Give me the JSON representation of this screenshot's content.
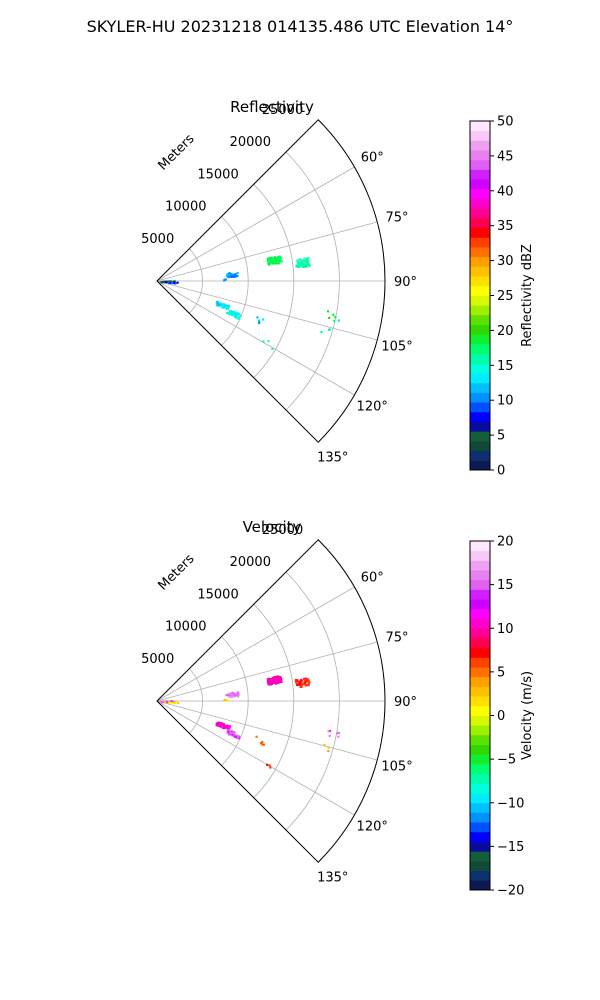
{
  "figure_title": "SKYLER-HU  20231218  014135.486 UTC Elevation 14°",
  "chart_data": [
    {
      "type": "polar-sector-scatter",
      "title": "Reflectivity",
      "radial_label": "Meters",
      "radial_ticks": [
        5000,
        10000,
        15000,
        20000,
        25000
      ],
      "radial_tick_labels": [
        "5000",
        "10000",
        "15000",
        "20000",
        "25000"
      ],
      "azimuth_range_deg": [
        45,
        135
      ],
      "azimuth_ticks_deg": [
        60,
        75,
        90,
        105,
        120,
        135
      ],
      "azimuth_tick_labels": [
        "60°",
        "75°",
        "90°",
        "105°",
        "120°",
        "135°"
      ],
      "range_max_m": 25000,
      "grid": true,
      "colorbar": {
        "label": "Reflectivity dBZ",
        "min": 0,
        "max": 50,
        "ticks": [
          0,
          5,
          10,
          15,
          20,
          25,
          30,
          35,
          40,
          45,
          50
        ],
        "tick_labels": [
          "0",
          "5",
          "10",
          "15",
          "20",
          "25",
          "30",
          "35",
          "40",
          "45",
          "50"
        ],
        "colors": [
          "#0b1a54",
          "#0d3070",
          "#124a3a",
          "#165d3e",
          "#0a0aa0",
          "#0000ff",
          "#0050ff",
          "#0090ff",
          "#00c0ff",
          "#00ecff",
          "#00ffdc",
          "#00ffa8",
          "#00ff70",
          "#10f030",
          "#30d800",
          "#60e000",
          "#a0f000",
          "#d8f800",
          "#ffff00",
          "#ffe000",
          "#ffc000",
          "#ffa000",
          "#ff7000",
          "#ff4000",
          "#ff0000",
          "#ff0050",
          "#ff0090",
          "#ff00c8",
          "#ff00ff",
          "#d000ff",
          "#d020ff",
          "#e060f0",
          "#e880f0",
          "#f0a0f0",
          "#f8c8f8",
          "#ffe8ff"
        ]
      },
      "clusters": [
        {
          "az": 84.5,
          "r": 8200,
          "value": 11,
          "count": 30
        },
        {
          "az": 79.5,
          "r": 13000,
          "value": 18,
          "count": 110
        },
        {
          "az": 82.5,
          "r": 16000,
          "value": 16,
          "count": 50
        },
        {
          "az": 88.5,
          "r": 1100,
          "value": 4,
          "count": 26
        },
        {
          "az": 93,
          "r": 1500,
          "value": 9,
          "count": 10
        },
        {
          "az": 110,
          "r": 7600,
          "value": 13,
          "count": 45
        },
        {
          "az": 113,
          "r": 9000,
          "value": 14,
          "count": 40
        },
        {
          "az": 101,
          "r": 19600,
          "value": 19,
          "count": 6
        },
        {
          "az": 105.5,
          "r": 19200,
          "value": 16,
          "count": 3
        },
        {
          "az": 111,
          "r": 12000,
          "value": 12,
          "count": 5
        },
        {
          "az": 119,
          "r": 14000,
          "value": 14,
          "count": 3
        },
        {
          "az": 88,
          "r": 7200,
          "value": 10,
          "count": 3
        }
      ]
    },
    {
      "type": "polar-sector-scatter",
      "title": "Velocity",
      "radial_label": "Meters",
      "radial_ticks": [
        5000,
        10000,
        15000,
        20000,
        25000
      ],
      "radial_tick_labels": [
        "5000",
        "10000",
        "15000",
        "20000",
        "25000"
      ],
      "azimuth_range_deg": [
        45,
        135
      ],
      "azimuth_ticks_deg": [
        60,
        75,
        90,
        105,
        120,
        135
      ],
      "azimuth_tick_labels": [
        "60°",
        "75°",
        "90°",
        "105°",
        "120°",
        "135°"
      ],
      "range_max_m": 25000,
      "grid": true,
      "colorbar": {
        "label": "Velocity (m/s)",
        "min": -20,
        "max": 20,
        "ticks": [
          -20,
          -15,
          -10,
          -5,
          0,
          5,
          10,
          15,
          20
        ],
        "tick_labels": [
          "−20",
          "−15",
          "−10",
          "−5",
          "0",
          "5",
          "10",
          "15",
          "20"
        ],
        "colors": [
          "#0b1a54",
          "#0d3070",
          "#124a3a",
          "#165d3e",
          "#0a0aa0",
          "#0000ff",
          "#0050ff",
          "#0090ff",
          "#00c0ff",
          "#00ecff",
          "#00ffdc",
          "#00ffa8",
          "#00ff70",
          "#10f030",
          "#30d800",
          "#60e000",
          "#a0f000",
          "#d8f800",
          "#ffff00",
          "#ffe000",
          "#ffc000",
          "#ffa000",
          "#ff7000",
          "#ff4000",
          "#ff0000",
          "#ff0050",
          "#ff0090",
          "#ff00c8",
          "#ff00ff",
          "#d000ff",
          "#d020ff",
          "#e060f0",
          "#e880f0",
          "#f0a0f0",
          "#f8c8f8",
          "#ffe8ff"
        ]
      },
      "clusters": [
        {
          "az": 84.5,
          "r": 8200,
          "value": 16,
          "count": 30
        },
        {
          "az": 79.5,
          "r": 13000,
          "value": 10,
          "count": 110
        },
        {
          "az": 82.5,
          "r": 16000,
          "value": 7,
          "count": 50
        },
        {
          "az": 88.5,
          "r": 1100,
          "value": 15,
          "count": 26
        },
        {
          "az": 93,
          "r": 1500,
          "value": 2,
          "count": 10
        },
        {
          "az": 110,
          "r": 7600,
          "value": 11,
          "count": 45
        },
        {
          "az": 113,
          "r": 9000,
          "value": 15,
          "count": 40
        },
        {
          "az": 101,
          "r": 19600,
          "value": 15,
          "count": 6
        },
        {
          "az": 105.5,
          "r": 19200,
          "value": 4,
          "count": 3
        },
        {
          "az": 111,
          "r": 12000,
          "value": 5,
          "count": 5
        },
        {
          "az": 119,
          "r": 14000,
          "value": 6,
          "count": 3
        },
        {
          "az": 88,
          "r": 7200,
          "value": 2,
          "count": 3
        }
      ]
    }
  ]
}
